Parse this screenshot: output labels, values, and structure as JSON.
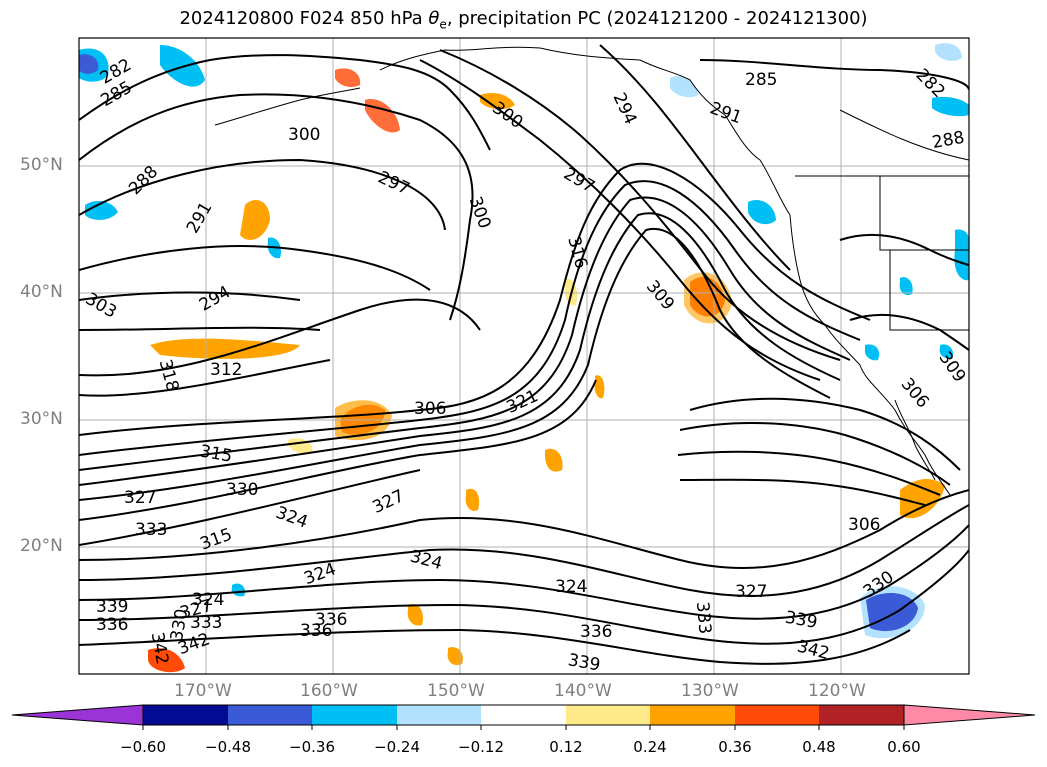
{
  "title": {
    "prefix": "2024120800 F024 850 hPa ",
    "symbol": "θ",
    "symbol_sub": "e",
    "suffix": ", precipitation PC (2024121200 - 2024121300)"
  },
  "axes": {
    "lat_labels": [
      "50°N",
      "40°N",
      "30°N",
      "20°N"
    ],
    "lon_labels": [
      "170°W",
      "160°W",
      "150°W",
      "140°W",
      "130°W",
      "120°W"
    ]
  },
  "contour_labels": [
    "282",
    "285",
    "300",
    "288",
    "291",
    "294",
    "297",
    "300",
    "303",
    "306",
    "309",
    "312",
    "315",
    "316",
    "318",
    "321",
    "324",
    "327",
    "330",
    "333",
    "336",
    "339",
    "342",
    "285",
    "282",
    "288",
    "291",
    "294",
    "297",
    "300",
    "306",
    "309",
    "324",
    "327",
    "330",
    "336",
    "339",
    "342",
    "333",
    "324",
    "324",
    "336",
    "339",
    "336",
    "342",
    "327",
    "306",
    "327",
    "315",
    "330",
    "333",
    "324"
  ],
  "colorbar": {
    "ticks": [
      "−0.60",
      "−0.48",
      "−0.36",
      "−0.24",
      "−0.12",
      "0.12",
      "0.24",
      "0.36",
      "0.48",
      "0.60"
    ],
    "colors": [
      "#9a34d6",
      "#020b92",
      "#3a5ad6",
      "#00bff5",
      "#b3e2ff",
      "#ffffff",
      "#ffea8a",
      "#ffa300",
      "#ff4a08",
      "#b02226",
      "#ff8aa8"
    ],
    "extend": "both"
  }
}
